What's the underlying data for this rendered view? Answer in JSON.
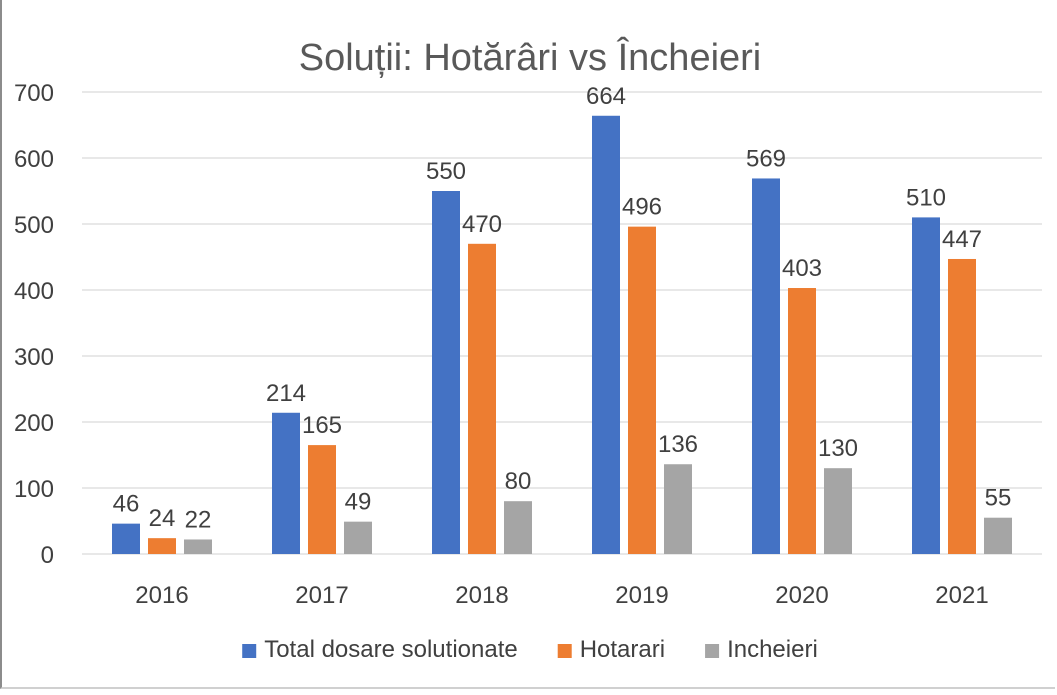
{
  "chart_data": {
    "type": "bar",
    "title": "Soluții: Hotărâri vs Încheieri",
    "xlabel": "",
    "ylabel": "",
    "categories": [
      "2016",
      "2017",
      "2018",
      "2019",
      "2020",
      "2021"
    ],
    "series": [
      {
        "name": "Total dosare solutionate",
        "color": "#4472c4",
        "values": [
          46,
          214,
          550,
          664,
          569,
          510
        ]
      },
      {
        "name": "Hotarari",
        "color": "#ed7d31",
        "values": [
          24,
          165,
          470,
          496,
          403,
          447
        ]
      },
      {
        "name": "Incheieri",
        "color": "#a5a5a5",
        "values": [
          22,
          49,
          80,
          136,
          130,
          55
        ]
      }
    ],
    "ylim": [
      0,
      700
    ],
    "yticks": [
      "0",
      "100",
      "200",
      "300",
      "400",
      "500",
      "600",
      "700"
    ],
    "grid": true,
    "legend_position": "bottom",
    "data_labels": true
  }
}
